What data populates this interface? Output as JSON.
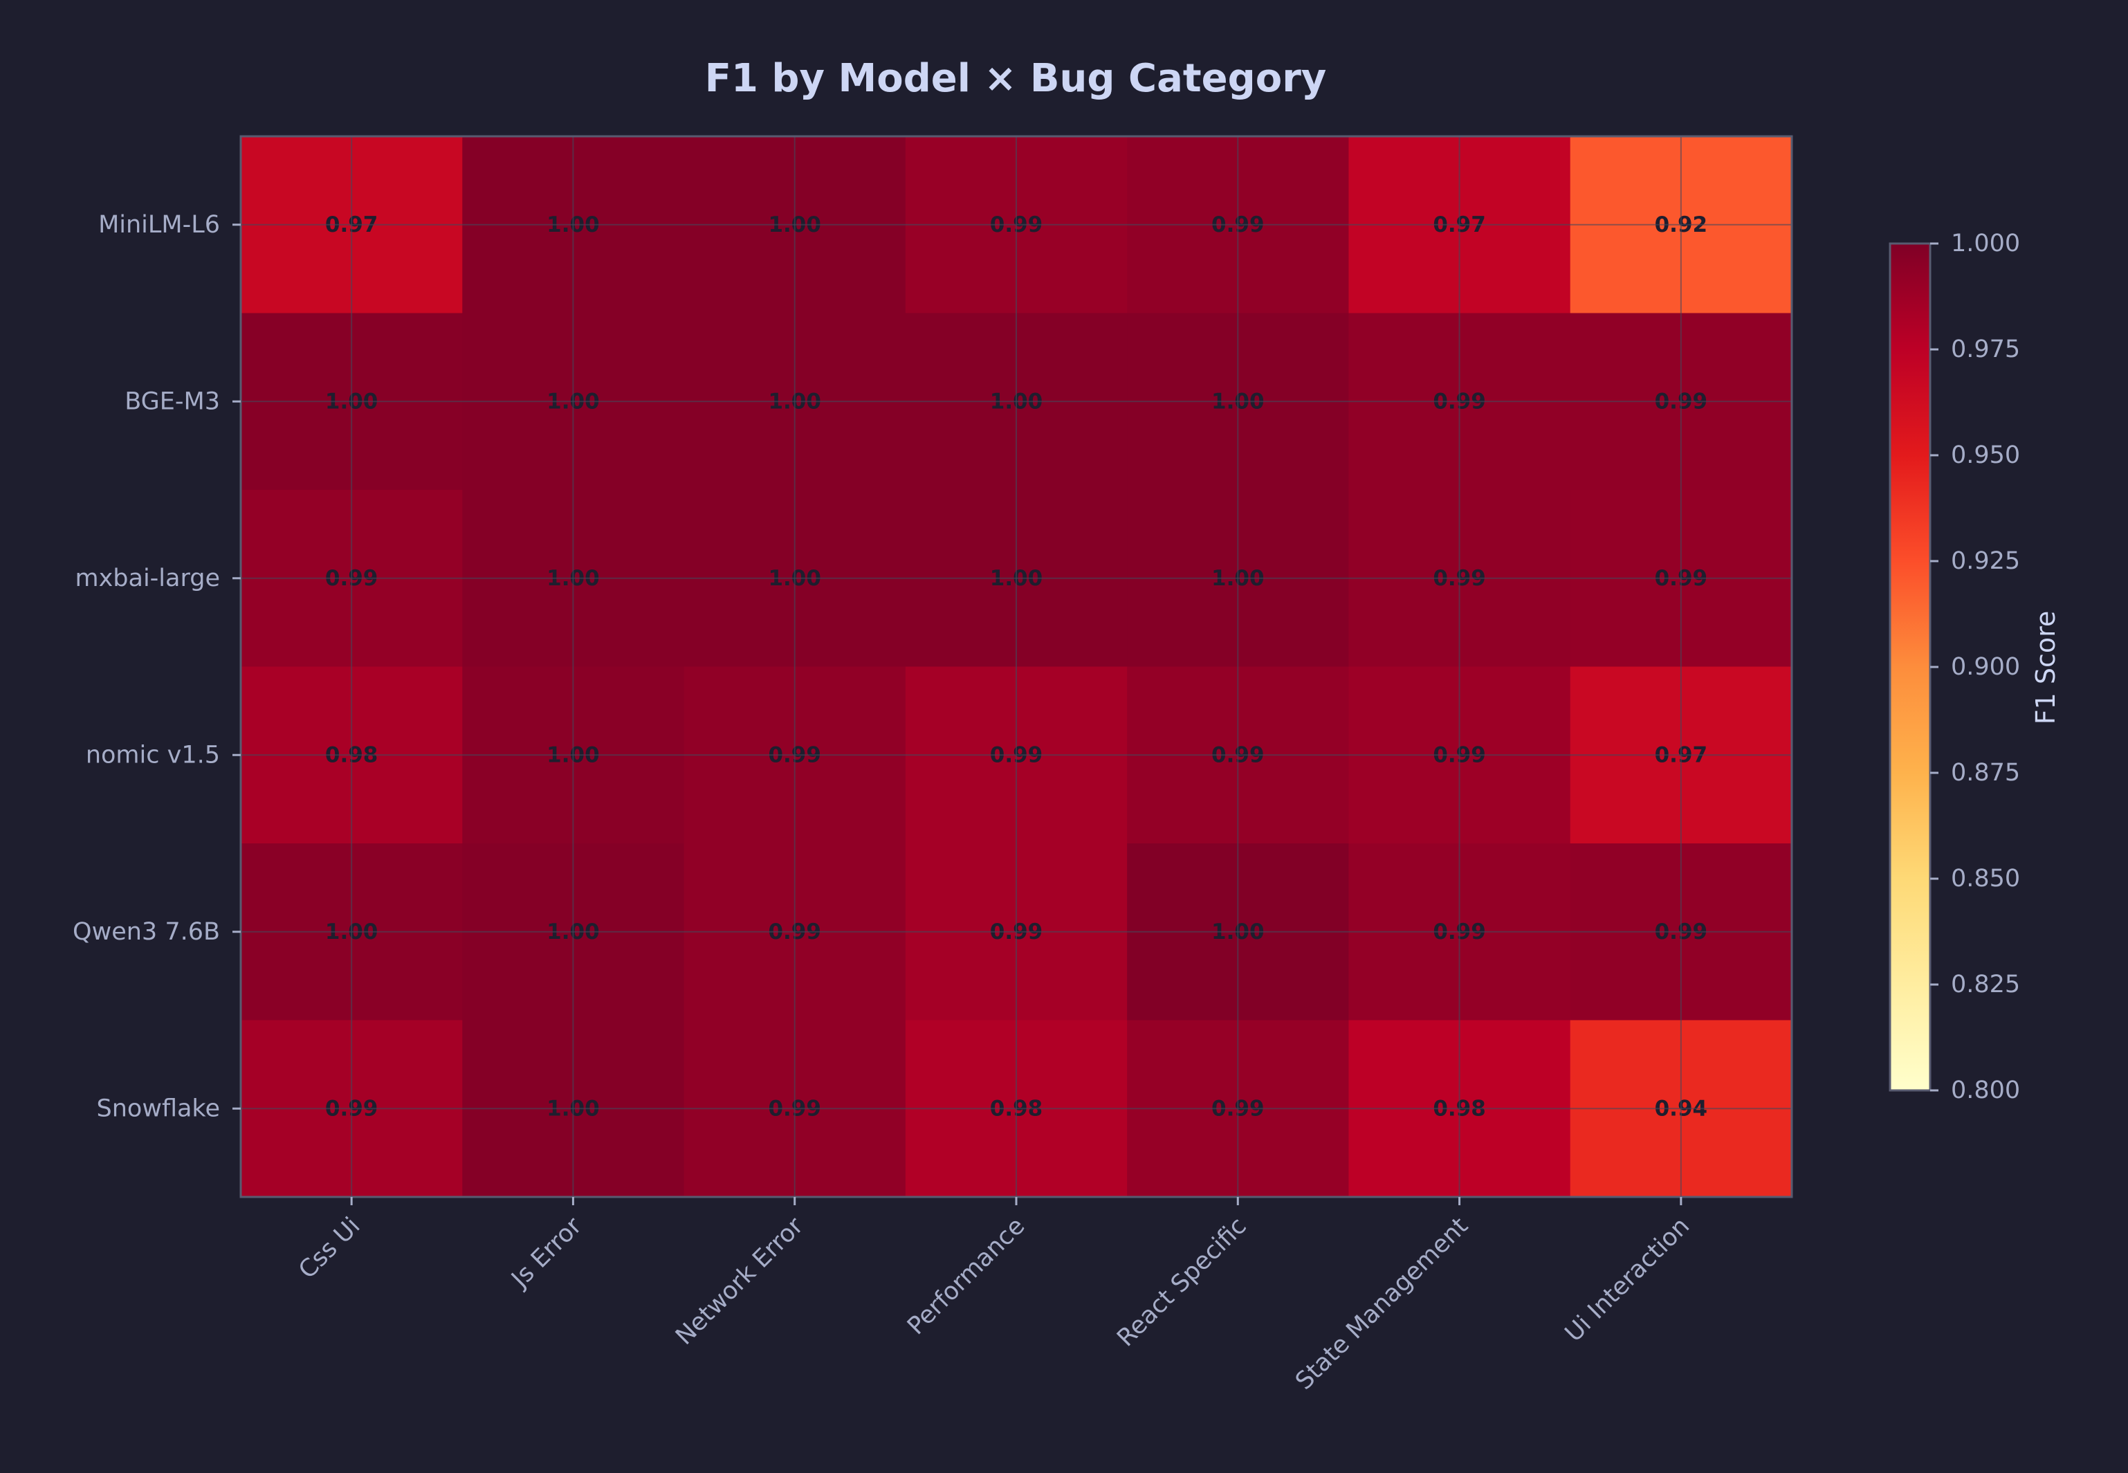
{
  "chart_data": {
    "type": "heatmap",
    "title": "F1 by Model × Bug Category",
    "xlabel": "",
    "ylabel": "",
    "rows": [
      "MiniLM-L6",
      "BGE-M3",
      "mxbai-large",
      "nomic v1.5",
      "Qwen3 7.6B",
      "Snowflake"
    ],
    "columns": [
      "Css Ui",
      "Js Error",
      "Network Error",
      "Performance",
      "React Specific",
      "State Management",
      "Ui Interaction"
    ],
    "values": [
      [
        0.968,
        0.998,
        0.998,
        0.99,
        0.993,
        0.972,
        0.921
      ],
      [
        0.997,
        0.998,
        0.998,
        0.998,
        0.998,
        0.993,
        0.993
      ],
      [
        0.992,
        0.998,
        0.998,
        0.998,
        0.998,
        0.993,
        0.992
      ],
      [
        0.983,
        0.996,
        0.993,
        0.985,
        0.992,
        0.988,
        0.967
      ],
      [
        0.996,
        0.998,
        0.993,
        0.985,
        0.999,
        0.992,
        0.993
      ],
      [
        0.985,
        0.998,
        0.993,
        0.98,
        0.991,
        0.975,
        0.943
      ]
    ],
    "cell_labels": [
      [
        "0.97",
        "1.00",
        "1.00",
        "0.99",
        "0.99",
        "0.97",
        "0.92"
      ],
      [
        "1.00",
        "1.00",
        "1.00",
        "1.00",
        "1.00",
        "0.99",
        "0.99"
      ],
      [
        "0.99",
        "1.00",
        "1.00",
        "1.00",
        "1.00",
        "0.99",
        "0.99"
      ],
      [
        "0.98",
        "1.00",
        "0.99",
        "0.99",
        "0.99",
        "0.99",
        "0.97"
      ],
      [
        "1.00",
        "1.00",
        "0.99",
        "0.99",
        "1.00",
        "0.99",
        "0.99"
      ],
      [
        "0.99",
        "1.00",
        "0.99",
        "0.98",
        "0.99",
        "0.98",
        "0.94"
      ]
    ],
    "colormap": "YlOrRd",
    "color_range": [
      0.8,
      1.0
    ],
    "grid": true,
    "colorbar": {
      "label": "F1 Score",
      "ticks": [
        "0.800",
        "0.825",
        "0.850",
        "0.875",
        "0.900",
        "0.925",
        "0.950",
        "0.975",
        "1.000"
      ],
      "position": "right"
    }
  },
  "colors": {
    "background": "#1e1e2e",
    "title": "#cdd6f4",
    "tick_text": "#a6adc8",
    "axis_frame": "#585b70",
    "grid": "#45475a",
    "cell_text": "#1e1e2e"
  }
}
